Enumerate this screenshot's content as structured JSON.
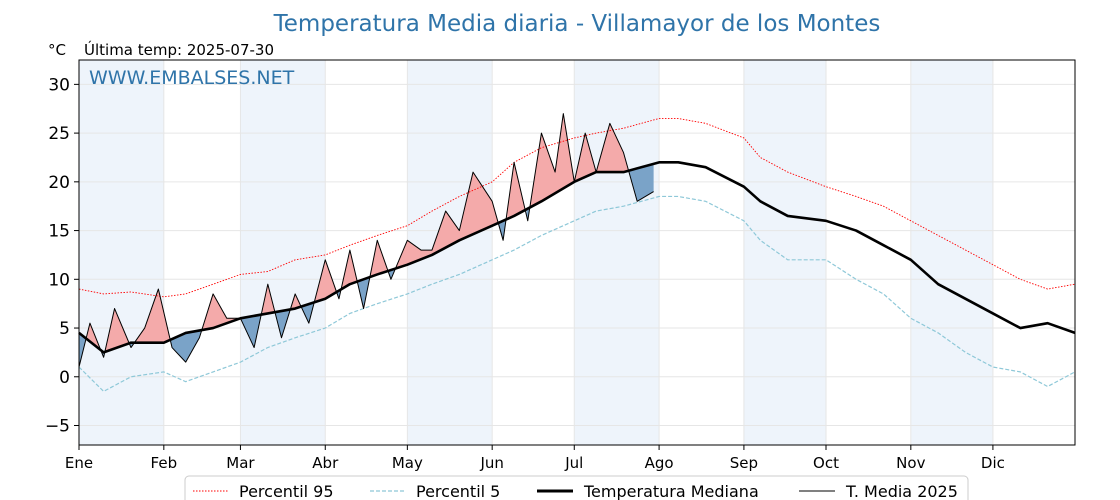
{
  "chart_data": {
    "type": "line",
    "title": "Temperatura Media diaria - Villamayor de los Montes",
    "unit": "°C",
    "subtitle": "Última temp: 2025-07-30",
    "watermark": "WWW.EMBALSES.NET",
    "ylim": [
      -7,
      32.5
    ],
    "yticks": [
      -5,
      0,
      5,
      10,
      15,
      20,
      25,
      30
    ],
    "ytick_labels": [
      "−5",
      "0",
      "5",
      "10",
      "15",
      "20",
      "25",
      "30"
    ],
    "month_labels": [
      "Ene",
      "Feb",
      "Mar",
      "Abr",
      "May",
      "Jun",
      "Jul",
      "Ago",
      "Sep",
      "Oct",
      "Nov",
      "Dic"
    ],
    "month_start_days": [
      1,
      32,
      60,
      91,
      121,
      152,
      182,
      213,
      244,
      274,
      305,
      335
    ],
    "x_range_days": [
      1,
      365
    ],
    "shaded_months": [
      1,
      3,
      5,
      7,
      9,
      11
    ],
    "grid": true,
    "legend_position": "bottom",
    "colors": {
      "p95": "#ff0000",
      "p5": "#8ec8d8",
      "median": "#000000",
      "actual": "#000000",
      "above_fill": "#f4aaaa",
      "below_fill": "#7aa3c8",
      "band": "#eef4fb",
      "title": "#2f74a9"
    },
    "series": [
      {
        "name": "Percentil 95",
        "style": "dotted-red",
        "x": [
          1,
          10,
          20,
          32,
          40,
          50,
          60,
          70,
          80,
          91,
          100,
          110,
          121,
          130,
          140,
          152,
          160,
          170,
          182,
          190,
          200,
          213,
          220,
          230,
          244,
          250,
          260,
          274,
          285,
          295,
          305,
          315,
          325,
          335,
          345,
          355,
          365
        ],
        "values": [
          9,
          8.5,
          8.7,
          8.2,
          8.5,
          9.5,
          10.5,
          10.8,
          12,
          12.5,
          13.5,
          14.5,
          15.5,
          17,
          18.5,
          20,
          22,
          23.5,
          24.5,
          25,
          25.5,
          26.5,
          26.5,
          26,
          24.5,
          22.5,
          21,
          19.5,
          18.5,
          17.5,
          16,
          14.5,
          13,
          11.5,
          10,
          9,
          9.5
        ]
      },
      {
        "name": "Percentil 5",
        "style": "dashed-lightblue",
        "x": [
          1,
          10,
          20,
          32,
          40,
          50,
          60,
          70,
          80,
          91,
          100,
          110,
          121,
          130,
          140,
          152,
          160,
          170,
          182,
          190,
          200,
          213,
          220,
          230,
          244,
          250,
          260,
          274,
          285,
          295,
          305,
          315,
          325,
          335,
          345,
          355,
          365
        ],
        "values": [
          1,
          -1.5,
          0,
          0.5,
          -0.5,
          0.5,
          1.5,
          3,
          4,
          5,
          6.5,
          7.5,
          8.5,
          9.5,
          10.5,
          12,
          13,
          14.5,
          16,
          17,
          17.5,
          18.5,
          18.5,
          18,
          16,
          14,
          12,
          12,
          10,
          8.5,
          6,
          4.5,
          2.5,
          1,
          0.5,
          -1,
          0.5
        ]
      },
      {
        "name": "Temperatura Mediana",
        "style": "thick-black",
        "x": [
          1,
          10,
          20,
          32,
          40,
          50,
          60,
          70,
          80,
          91,
          100,
          110,
          121,
          130,
          140,
          152,
          160,
          170,
          182,
          190,
          200,
          213,
          220,
          230,
          244,
          250,
          260,
          274,
          285,
          295,
          305,
          315,
          325,
          335,
          345,
          355,
          365
        ],
        "values": [
          4.5,
          2.5,
          3.5,
          3.5,
          4.5,
          5,
          6,
          6.5,
          7,
          8,
          9.5,
          10.5,
          11.5,
          12.5,
          14,
          15.5,
          16.5,
          18,
          20,
          21,
          21,
          22,
          22,
          21.5,
          19.5,
          18,
          16.5,
          16,
          15,
          13.5,
          12,
          9.5,
          8,
          6.5,
          5,
          5.5,
          4.5
        ]
      },
      {
        "name": "T. Media 2025",
        "style": "thin-black",
        "x": [
          1,
          5,
          10,
          14,
          20,
          25,
          30,
          35,
          40,
          45,
          50,
          55,
          60,
          65,
          70,
          75,
          80,
          85,
          91,
          96,
          100,
          105,
          110,
          115,
          121,
          126,
          130,
          135,
          140,
          145,
          152,
          156,
          160,
          165,
          170,
          175,
          178,
          182,
          186,
          190,
          195,
          200,
          205,
          211
        ],
        "values": [
          1,
          5.5,
          2,
          7,
          3,
          5,
          9,
          3,
          1.5,
          4,
          8.5,
          6,
          6,
          3,
          9.5,
          4,
          8.5,
          5.5,
          12,
          8,
          13,
          7,
          14,
          10,
          14,
          13,
          13,
          17,
          15,
          21,
          18,
          14,
          22,
          16,
          25,
          21,
          27,
          20,
          25,
          21,
          26,
          23,
          18,
          19
        ]
      }
    ]
  }
}
